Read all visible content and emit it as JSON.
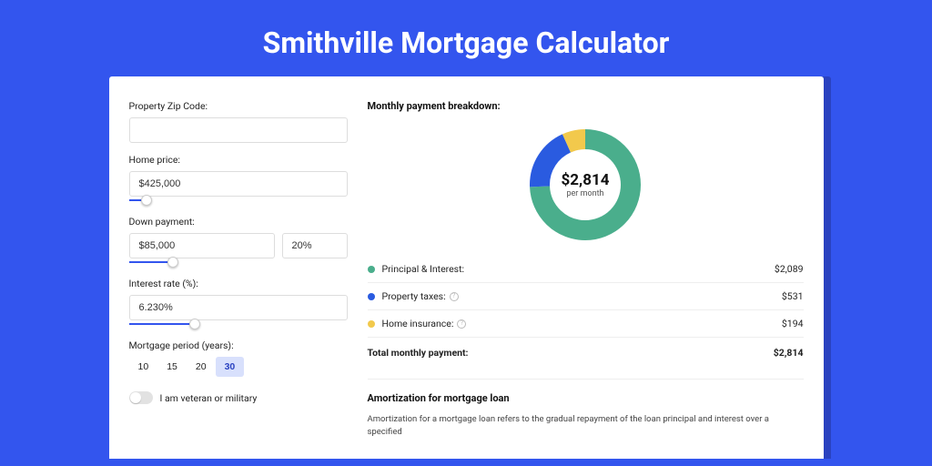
{
  "page": {
    "title": "Smithville Mortgage Calculator",
    "background_color": "#3355ee",
    "card_shadow_color": "#2a42c0"
  },
  "form": {
    "zip": {
      "label": "Property Zip Code:",
      "value": ""
    },
    "home_price": {
      "label": "Home price:",
      "value": "$425,000",
      "slider_fill_pct": 8,
      "thumb_pct": 8
    },
    "down_payment": {
      "label": "Down payment:",
      "amount": "$85,000",
      "pct": "20%",
      "slider_fill_pct": 20,
      "thumb_pct": 20
    },
    "interest_rate": {
      "label": "Interest rate (%):",
      "value": "6.230%",
      "slider_fill_pct": 30,
      "thumb_pct": 30
    },
    "period": {
      "label": "Mortgage period (years):",
      "options": [
        "10",
        "15",
        "20",
        "30"
      ],
      "active": "30"
    },
    "veteran": {
      "label": "I am veteran or military",
      "on": false
    }
  },
  "breakdown": {
    "heading": "Monthly payment breakdown:",
    "center_amount": "$2,814",
    "center_sub": "per month",
    "donut": {
      "segments": [
        {
          "key": "principal_interest",
          "value": 2089,
          "color": "#4aae8c"
        },
        {
          "key": "property_taxes",
          "value": 531,
          "color": "#2a5be0"
        },
        {
          "key": "home_insurance",
          "value": 194,
          "color": "#f2c94c"
        }
      ],
      "colors": {
        "principal_interest": "#4aae8c",
        "property_taxes": "#2a5be0",
        "home_insurance": "#f2c94c"
      },
      "stroke_width": 22
    },
    "rows": [
      {
        "key": "principal_interest",
        "label": "Principal & Interest:",
        "value": "$2,089",
        "info": false
      },
      {
        "key": "property_taxes",
        "label": "Property taxes:",
        "value": "$531",
        "info": true
      },
      {
        "key": "home_insurance",
        "label": "Home insurance:",
        "value": "$194",
        "info": true
      }
    ],
    "total": {
      "label": "Total monthly payment:",
      "value": "$2,814"
    }
  },
  "amortization": {
    "heading": "Amortization for mortgage loan",
    "text": "Amortization for a mortgage loan refers to the gradual repayment of the loan principal and interest over a specified"
  }
}
